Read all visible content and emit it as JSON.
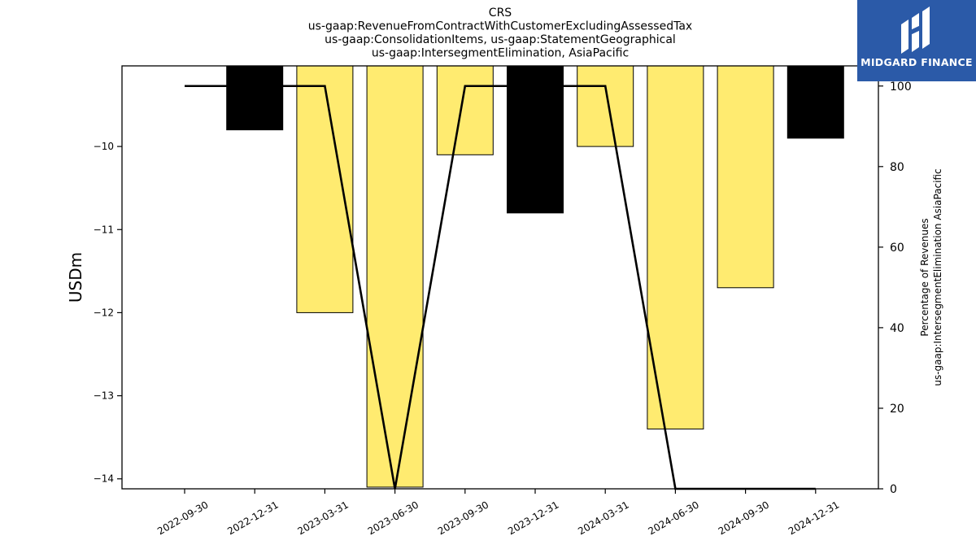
{
  "chart_data": {
    "type": "bar",
    "title_lines": [
      "CRS",
      "us-gaap:RevenueFromContractWithCustomerExcludingAssessedTax",
      "us-gaap:ConsolidationItems, us-gaap:StatementGeographical",
      "us-gaap:IntersegmentElimination, AsiaPacific"
    ],
    "categories": [
      "2022-09-30",
      "2022-12-31",
      "2023-03-31",
      "2023-06-30",
      "2023-09-30",
      "2023-12-31",
      "2024-03-31",
      "2024-06-30",
      "2024-09-30",
      "2024-12-31"
    ],
    "series": [
      {
        "type": "bar",
        "axis": "left",
        "values": [
          null,
          -9.8,
          -12.0,
          -14.1,
          -10.1,
          -10.8,
          -10.0,
          -13.4,
          -11.7,
          -9.9
        ],
        "fill_colors": [
          null,
          "#000000",
          "#ffeb70",
          "#ffeb70",
          "#ffeb70",
          "#000000",
          "#ffeb70",
          "#ffeb70",
          "#ffeb70",
          "#000000"
        ]
      },
      {
        "type": "line",
        "axis": "right",
        "color": "#000000",
        "values": [
          100,
          100,
          100,
          0,
          100,
          100,
          100,
          0,
          0,
          0
        ]
      }
    ],
    "ylabel": "USDm",
    "ylabel_right_lines": [
      "Percentage of Revenues",
      "us-gaap:IntersegmentElimination AsiaPacific"
    ],
    "y_ticks": [
      -10,
      -11,
      -12,
      -13,
      -14
    ],
    "y_tick_labels": [
      "−10",
      "−11",
      "−12",
      "−13",
      "−14"
    ],
    "ylim": [
      -14.12,
      -9.03
    ],
    "y2_ticks": [
      0,
      20,
      40,
      60,
      80,
      100
    ],
    "y2lim": [
      0,
      105
    ],
    "grid": false
  },
  "logo": {
    "text": "MIDGARD FINANCE",
    "bg_color": "#2b5aa8"
  }
}
